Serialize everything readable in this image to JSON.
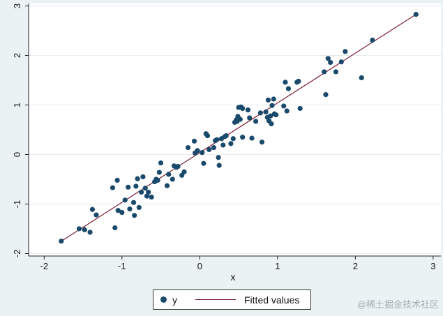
{
  "chart_data": {
    "type": "scatter",
    "xlabel": "x",
    "ylabel": "",
    "xlim": [
      -2.2,
      3.1
    ],
    "ylim": [
      -2.05,
      3.05
    ],
    "xticks": [
      -2,
      -1,
      0,
      1,
      2,
      3
    ],
    "yticks": [
      -2,
      -1,
      0,
      1,
      2,
      3
    ],
    "grid": "horizontal",
    "legend_position": "bottom",
    "series": [
      {
        "name": "y",
        "kind": "scatter",
        "color": "#1a4a6b",
        "points": [
          [
            -1.78,
            -1.75
          ],
          [
            -1.55,
            -1.5
          ],
          [
            -1.48,
            -1.52
          ],
          [
            -1.41,
            -1.57
          ],
          [
            -1.38,
            -1.11
          ],
          [
            -1.33,
            -1.22
          ],
          [
            -1.12,
            -0.67
          ],
          [
            -1.09,
            -1.48
          ],
          [
            -1.06,
            -0.52
          ],
          [
            -1.05,
            -1.13
          ],
          [
            -1.0,
            -1.17
          ],
          [
            -0.96,
            -0.92
          ],
          [
            -0.92,
            -0.66
          ],
          [
            -0.9,
            -1.1
          ],
          [
            -0.85,
            -0.97
          ],
          [
            -0.84,
            -1.23
          ],
          [
            -0.82,
            -0.64
          ],
          [
            -0.8,
            -0.49
          ],
          [
            -0.78,
            -1.07
          ],
          [
            -0.75,
            -0.76
          ],
          [
            -0.73,
            -0.45
          ],
          [
            -0.7,
            -0.68
          ],
          [
            -0.68,
            -0.84
          ],
          [
            -0.66,
            -0.76
          ],
          [
            -0.62,
            -0.86
          ],
          [
            -0.58,
            -0.55
          ],
          [
            -0.56,
            -0.5
          ],
          [
            -0.54,
            -0.52
          ],
          [
            -0.52,
            -0.36
          ],
          [
            -0.5,
            -0.17
          ],
          [
            -0.42,
            -0.63
          ],
          [
            -0.4,
            -0.4
          ],
          [
            -0.35,
            -0.5
          ],
          [
            -0.33,
            -0.23
          ],
          [
            -0.3,
            -0.26
          ],
          [
            -0.28,
            -0.24
          ],
          [
            -0.23,
            -0.42
          ],
          [
            -0.2,
            -0.35
          ],
          [
            -0.15,
            0.14
          ],
          [
            -0.07,
            0.27
          ],
          [
            -0.06,
            0.03
          ],
          [
            -0.03,
            0.08
          ],
          [
            0.03,
            0.04
          ],
          [
            0.05,
            -0.18
          ],
          [
            0.08,
            0.42
          ],
          [
            0.1,
            0.38
          ],
          [
            0.12,
            0.1
          ],
          [
            0.18,
            0.14
          ],
          [
            0.2,
            0.28
          ],
          [
            0.22,
            0.3
          ],
          [
            0.24,
            -0.06
          ],
          [
            0.25,
            -0.22
          ],
          [
            0.28,
            0.32
          ],
          [
            0.3,
            0.19
          ],
          [
            0.32,
            0.36
          ],
          [
            0.34,
            0.38
          ],
          [
            0.4,
            0.22
          ],
          [
            0.43,
            0.32
          ],
          [
            0.45,
            0.65
          ],
          [
            0.47,
            0.7
          ],
          [
            0.48,
            0.67
          ],
          [
            0.49,
            0.77
          ],
          [
            0.5,
            0.95
          ],
          [
            0.53,
            0.96
          ],
          [
            0.55,
            0.93
          ],
          [
            0.52,
            0.71
          ],
          [
            0.55,
            0.35
          ],
          [
            0.62,
            0.9
          ],
          [
            0.64,
            0.74
          ],
          [
            0.67,
            0.33
          ],
          [
            0.72,
            0.67
          ],
          [
            0.78,
            0.84
          ],
          [
            0.8,
            0.25
          ],
          [
            0.85,
            0.86
          ],
          [
            0.87,
            0.75
          ],
          [
            0.88,
            1.1
          ],
          [
            0.89,
            0.68
          ],
          [
            0.91,
            0.78
          ],
          [
            0.92,
            0.62
          ],
          [
            0.93,
            0.99
          ],
          [
            0.95,
            1.12
          ],
          [
            0.96,
            0.82
          ],
          [
            0.98,
            0.8
          ],
          [
            1.08,
            0.98
          ],
          [
            1.1,
            1.46
          ],
          [
            1.12,
            0.88
          ],
          [
            1.14,
            1.33
          ],
          [
            1.25,
            1.46
          ],
          [
            1.27,
            1.48
          ],
          [
            1.29,
            0.93
          ],
          [
            1.6,
            1.67
          ],
          [
            1.62,
            1.21
          ],
          [
            1.65,
            1.94
          ],
          [
            1.68,
            1.86
          ],
          [
            1.75,
            1.67
          ],
          [
            1.82,
            1.87
          ],
          [
            1.87,
            2.08
          ],
          [
            2.08,
            1.55
          ],
          [
            2.22,
            2.31
          ],
          [
            2.78,
            2.83
          ]
        ]
      },
      {
        "name": "Fitted values",
        "kind": "line",
        "color": "#7a1a2e",
        "x": [
          -1.78,
          2.78
        ],
        "y": [
          -1.75,
          2.83
        ]
      }
    ]
  },
  "watermark": "@稀土掘金技术社区"
}
